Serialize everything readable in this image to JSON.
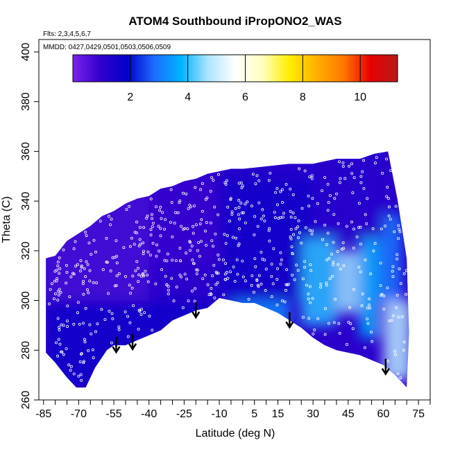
{
  "chart_data": {
    "type": "heatmap",
    "title": "ATOM4 Southbound iPropONO2_WAS",
    "flights_note": "Flts: 2,3,4,5,6,7",
    "dates_note": "MMDD: 0427,0429,0501,0503,0506,0509",
    "xlabel": "Latitude (deg N)",
    "ylabel": "Theta (C)",
    "x_ticks": [
      "-85",
      "-70",
      "-55",
      "-40",
      "-25",
      "-10",
      "5",
      "15",
      "30",
      "45",
      "60",
      "75"
    ],
    "x_tick_values": [
      -85,
      -70,
      -55,
      -40,
      -25,
      -10,
      5,
      15,
      30,
      45,
      60,
      75
    ],
    "y_ticks": [
      "260",
      "280",
      "300",
      "320",
      "340",
      "360",
      "380",
      "400"
    ],
    "y_tick_values": [
      260,
      280,
      300,
      320,
      340,
      360,
      380,
      400
    ],
    "xlim": [
      -87,
      80
    ],
    "ylim": [
      260,
      405
    ],
    "colorbar": {
      "ticks": [
        "2",
        "4",
        "6",
        "8",
        "10"
      ],
      "tick_values": [
        2,
        4,
        6,
        8,
        10
      ],
      "range": [
        0,
        11.3
      ],
      "colors": [
        "#7b22ee",
        "#3300cc",
        "#0000c8",
        "#1e6bff",
        "#00b4ff",
        "#aee4ff",
        "#ffffff",
        "#ffffc0",
        "#ffee00",
        "#ffb000",
        "#ff7800",
        "#e60000",
        "#b81a1a"
      ]
    },
    "flight_arrows_latitude": [
      -54,
      -47,
      -20,
      20,
      61
    ],
    "upper_boundary_theta": [
      [
        -84,
        317
      ],
      [
        -80,
        318
      ],
      [
        -75,
        324
      ],
      [
        -70,
        327
      ],
      [
        -65,
        330
      ],
      [
        -60,
        334
      ],
      [
        -55,
        336
      ],
      [
        -50,
        339
      ],
      [
        -45,
        341
      ],
      [
        -40,
        342
      ],
      [
        -35,
        345
      ],
      [
        -30,
        346
      ],
      [
        -25,
        348
      ],
      [
        -20,
        349
      ],
      [
        -15,
        351
      ],
      [
        -10,
        352
      ],
      [
        -5,
        353
      ],
      [
        0,
        353
      ],
      [
        10,
        354
      ],
      [
        20,
        355
      ],
      [
        30,
        355
      ],
      [
        40,
        357
      ],
      [
        50,
        357
      ],
      [
        56,
        359
      ],
      [
        62,
        360
      ],
      [
        66,
        341
      ],
      [
        70,
        317
      ],
      [
        71,
        287
      ]
    ],
    "lower_boundary_theta": [
      [
        -84,
        279
      ],
      [
        -80,
        275
      ],
      [
        -75,
        269
      ],
      [
        -71,
        265
      ],
      [
        -67,
        265
      ],
      [
        -63,
        273
      ],
      [
        -58,
        280
      ],
      [
        -55,
        282
      ],
      [
        -50,
        282
      ],
      [
        -45,
        284
      ],
      [
        -40,
        286
      ],
      [
        -35,
        288
      ],
      [
        -30,
        292
      ],
      [
        -25,
        294
      ],
      [
        -20,
        296
      ],
      [
        -15,
        297
      ],
      [
        -10,
        301
      ],
      [
        -5,
        300
      ],
      [
        0,
        299
      ],
      [
        5,
        299
      ],
      [
        10,
        297
      ],
      [
        15,
        295
      ],
      [
        20,
        292
      ],
      [
        25,
        289
      ],
      [
        30,
        285
      ],
      [
        35,
        282
      ],
      [
        40,
        280
      ],
      [
        45,
        279
      ],
      [
        50,
        278
      ],
      [
        55,
        276
      ],
      [
        60,
        274
      ],
      [
        65,
        270
      ],
      [
        70,
        265
      ]
    ],
    "field_patches": [
      {
        "lat": [
          -84,
          -40
        ],
        "theta": [
          300,
          345
        ],
        "value": 0.7
      },
      {
        "lat": [
          -84,
          -10
        ],
        "theta": [
          265,
          300
        ],
        "value": 1.6
      },
      {
        "lat": [
          -40,
          0
        ],
        "theta": [
          315,
          350
        ],
        "value": 0.9
      },
      {
        "lat": [
          -10,
          30
        ],
        "theta": [
          300,
          350
        ],
        "value": 1.6
      },
      {
        "lat": [
          -5,
          20
        ],
        "theta": [
          285,
          300
        ],
        "value": 3.2
      },
      {
        "lat": [
          25,
          40
        ],
        "theta": [
          290,
          325
        ],
        "value": 4.0
      },
      {
        "lat": [
          40,
          50
        ],
        "theta": [
          295,
          320
        ],
        "value": 4.6
      },
      {
        "lat": [
          50,
          58
        ],
        "theta": [
          285,
          325
        ],
        "value": 3.8
      },
      {
        "lat": [
          58,
          68
        ],
        "theta": [
          300,
          335
        ],
        "value": 3.0
      },
      {
        "lat": [
          60,
          72
        ],
        "theta": [
          268,
          300
        ],
        "value": 4.8
      },
      {
        "lat": [
          30,
          60
        ],
        "theta": [
          325,
          360
        ],
        "value": 1.2
      }
    ]
  }
}
